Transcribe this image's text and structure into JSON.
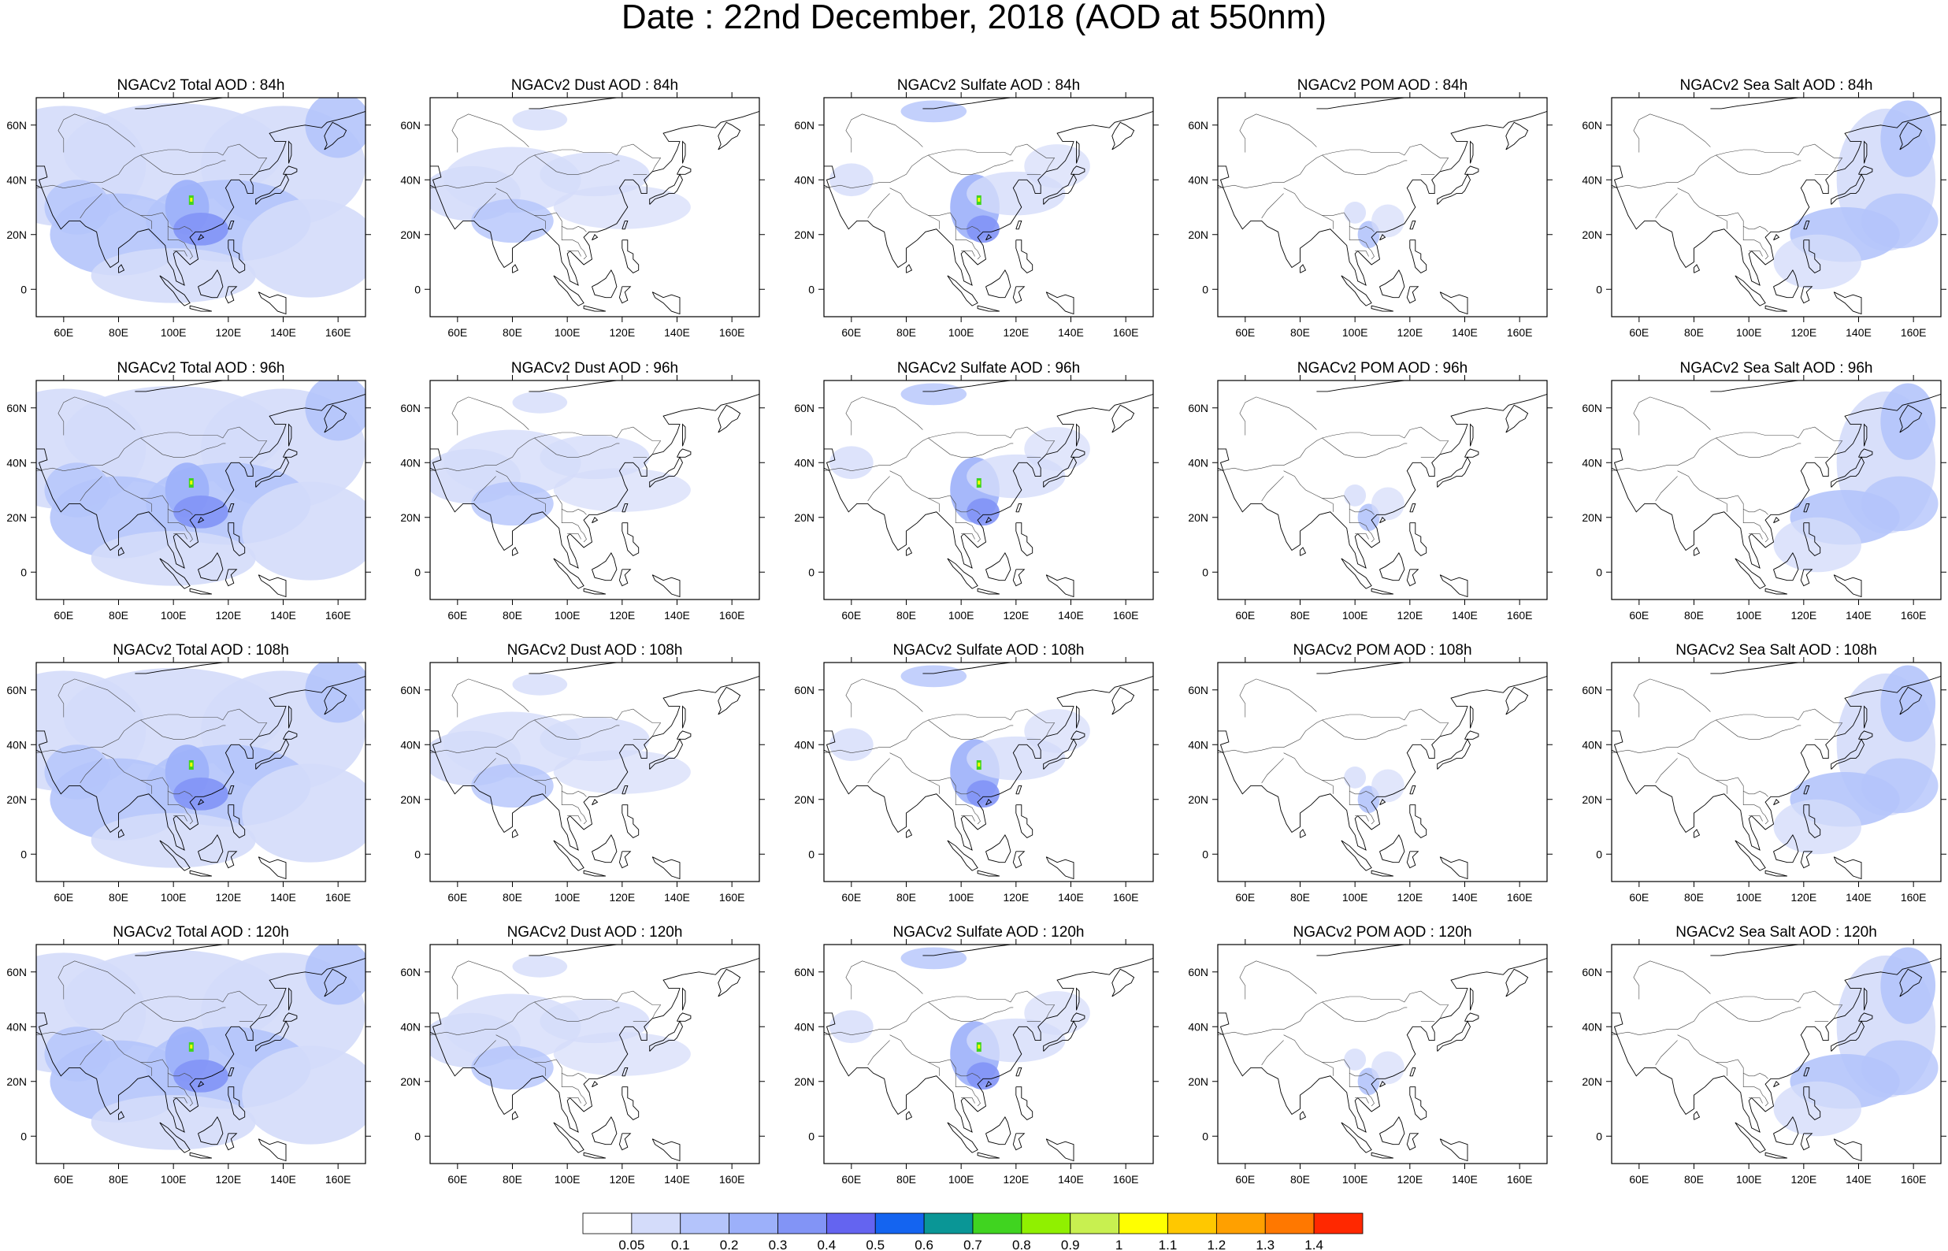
{
  "title": "Date : 22nd December, 2018 (AOD at 550nm)",
  "lon_ticks": [
    "60E",
    "80E",
    "100E",
    "120E",
    "140E",
    "160E"
  ],
  "lat_ticks": [
    "60N",
    "40N",
    "20N",
    "0"
  ],
  "rows": [
    {
      "panels": [
        "NGACv2 Total AOD : 84h",
        "NGACv2 Dust AOD : 84h",
        "NGACv2 Sulfate AOD : 84h",
        "NGACv2 POM AOD : 84h",
        "NGACv2 Sea Salt AOD : 84h"
      ]
    },
    {
      "panels": [
        "NGACv2 Total AOD : 96h",
        "NGACv2 Dust AOD : 96h",
        "NGACv2 Sulfate AOD : 96h",
        "NGACv2 POM AOD : 96h",
        "NGACv2 Sea Salt AOD : 96h"
      ]
    },
    {
      "panels": [
        "NGACv2 Total AOD : 108h",
        "NGACv2 Dust AOD : 108h",
        "NGACv2 Sulfate AOD : 108h",
        "NGACv2 POM AOD : 108h",
        "NGACv2 Sea Salt AOD : 108h"
      ]
    },
    {
      "panels": [
        "NGACv2 Total AOD : 120h",
        "NGACv2 Dust AOD : 120h",
        "NGACv2 Sulfate AOD : 120h",
        "NGACv2 POM AOD : 120h",
        "NGACv2 Sea Salt  AOD : 120h"
      ]
    }
  ],
  "colorbar": {
    "labels": [
      "0.05",
      "0.1",
      "0.2",
      "0.3",
      "0.4",
      "0.5",
      "0.6",
      "0.7",
      "0.8",
      "0.9",
      "1",
      "1.1",
      "1.2",
      "1.3",
      "1.4"
    ],
    "colors": [
      "#ffffff",
      "#d4dcfa",
      "#b4c4fb",
      "#9cb0fa",
      "#8294f6",
      "#6464f0",
      "#1464f0",
      "#0a9696",
      "#40d420",
      "#90f000",
      "#c8f050",
      "#ffff00",
      "#ffc800",
      "#ffa000",
      "#ff7800",
      "#ff2800"
    ]
  }
}
